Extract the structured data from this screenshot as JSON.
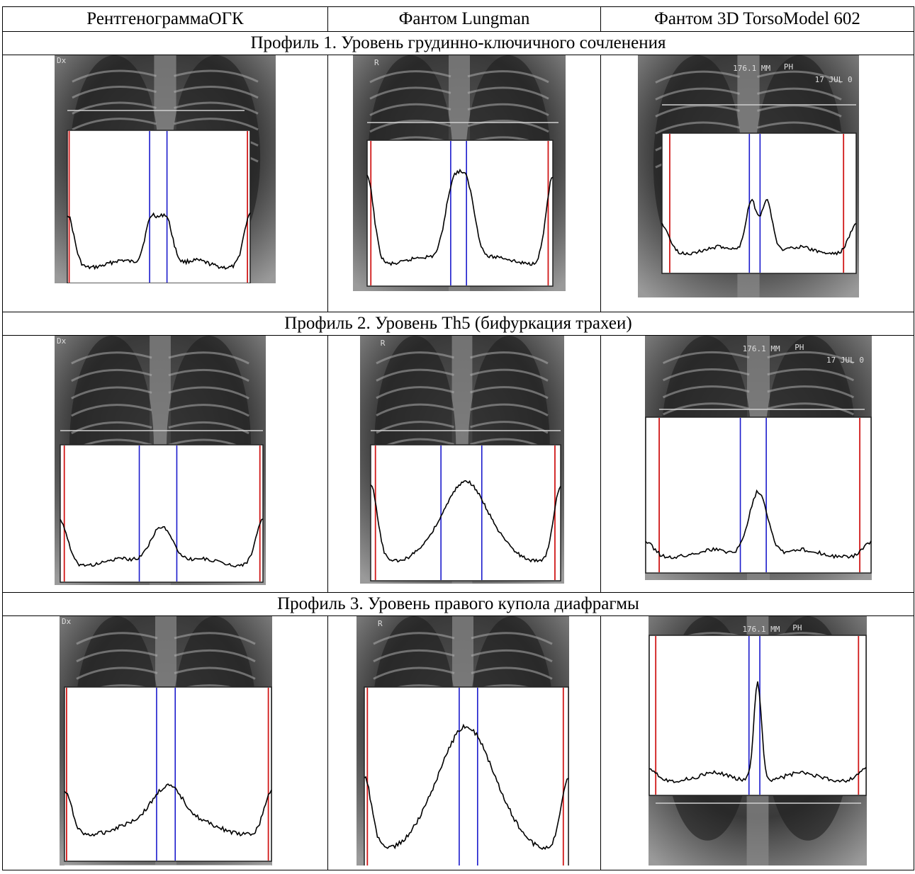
{
  "columns": [
    "РентгенограммаОГК",
    "Фантом Lungman",
    "Фантом 3D TorsoModel 602"
  ],
  "profiles": [
    {
      "title": "Профиль 1. Уровень грудинно-ключичного сочленения"
    },
    {
      "title": "Профиль 2. Уровень Th5 (бифуркация трахеи)"
    },
    {
      "title": "Профиль 3. Уровень правого купола диафрагмы"
    }
  ],
  "image_labels": {
    "xray_marker": "Dx",
    "lungman_marker": "R",
    "torso_scale": "176.1 MM",
    "torso_tag": "PH",
    "torso_date": "17 JUL 0"
  },
  "colors": {
    "edge_line": "#d01818",
    "center_line": "#1a1acc",
    "profile_curve": "#000000",
    "profile_box": "#ffffff"
  }
}
